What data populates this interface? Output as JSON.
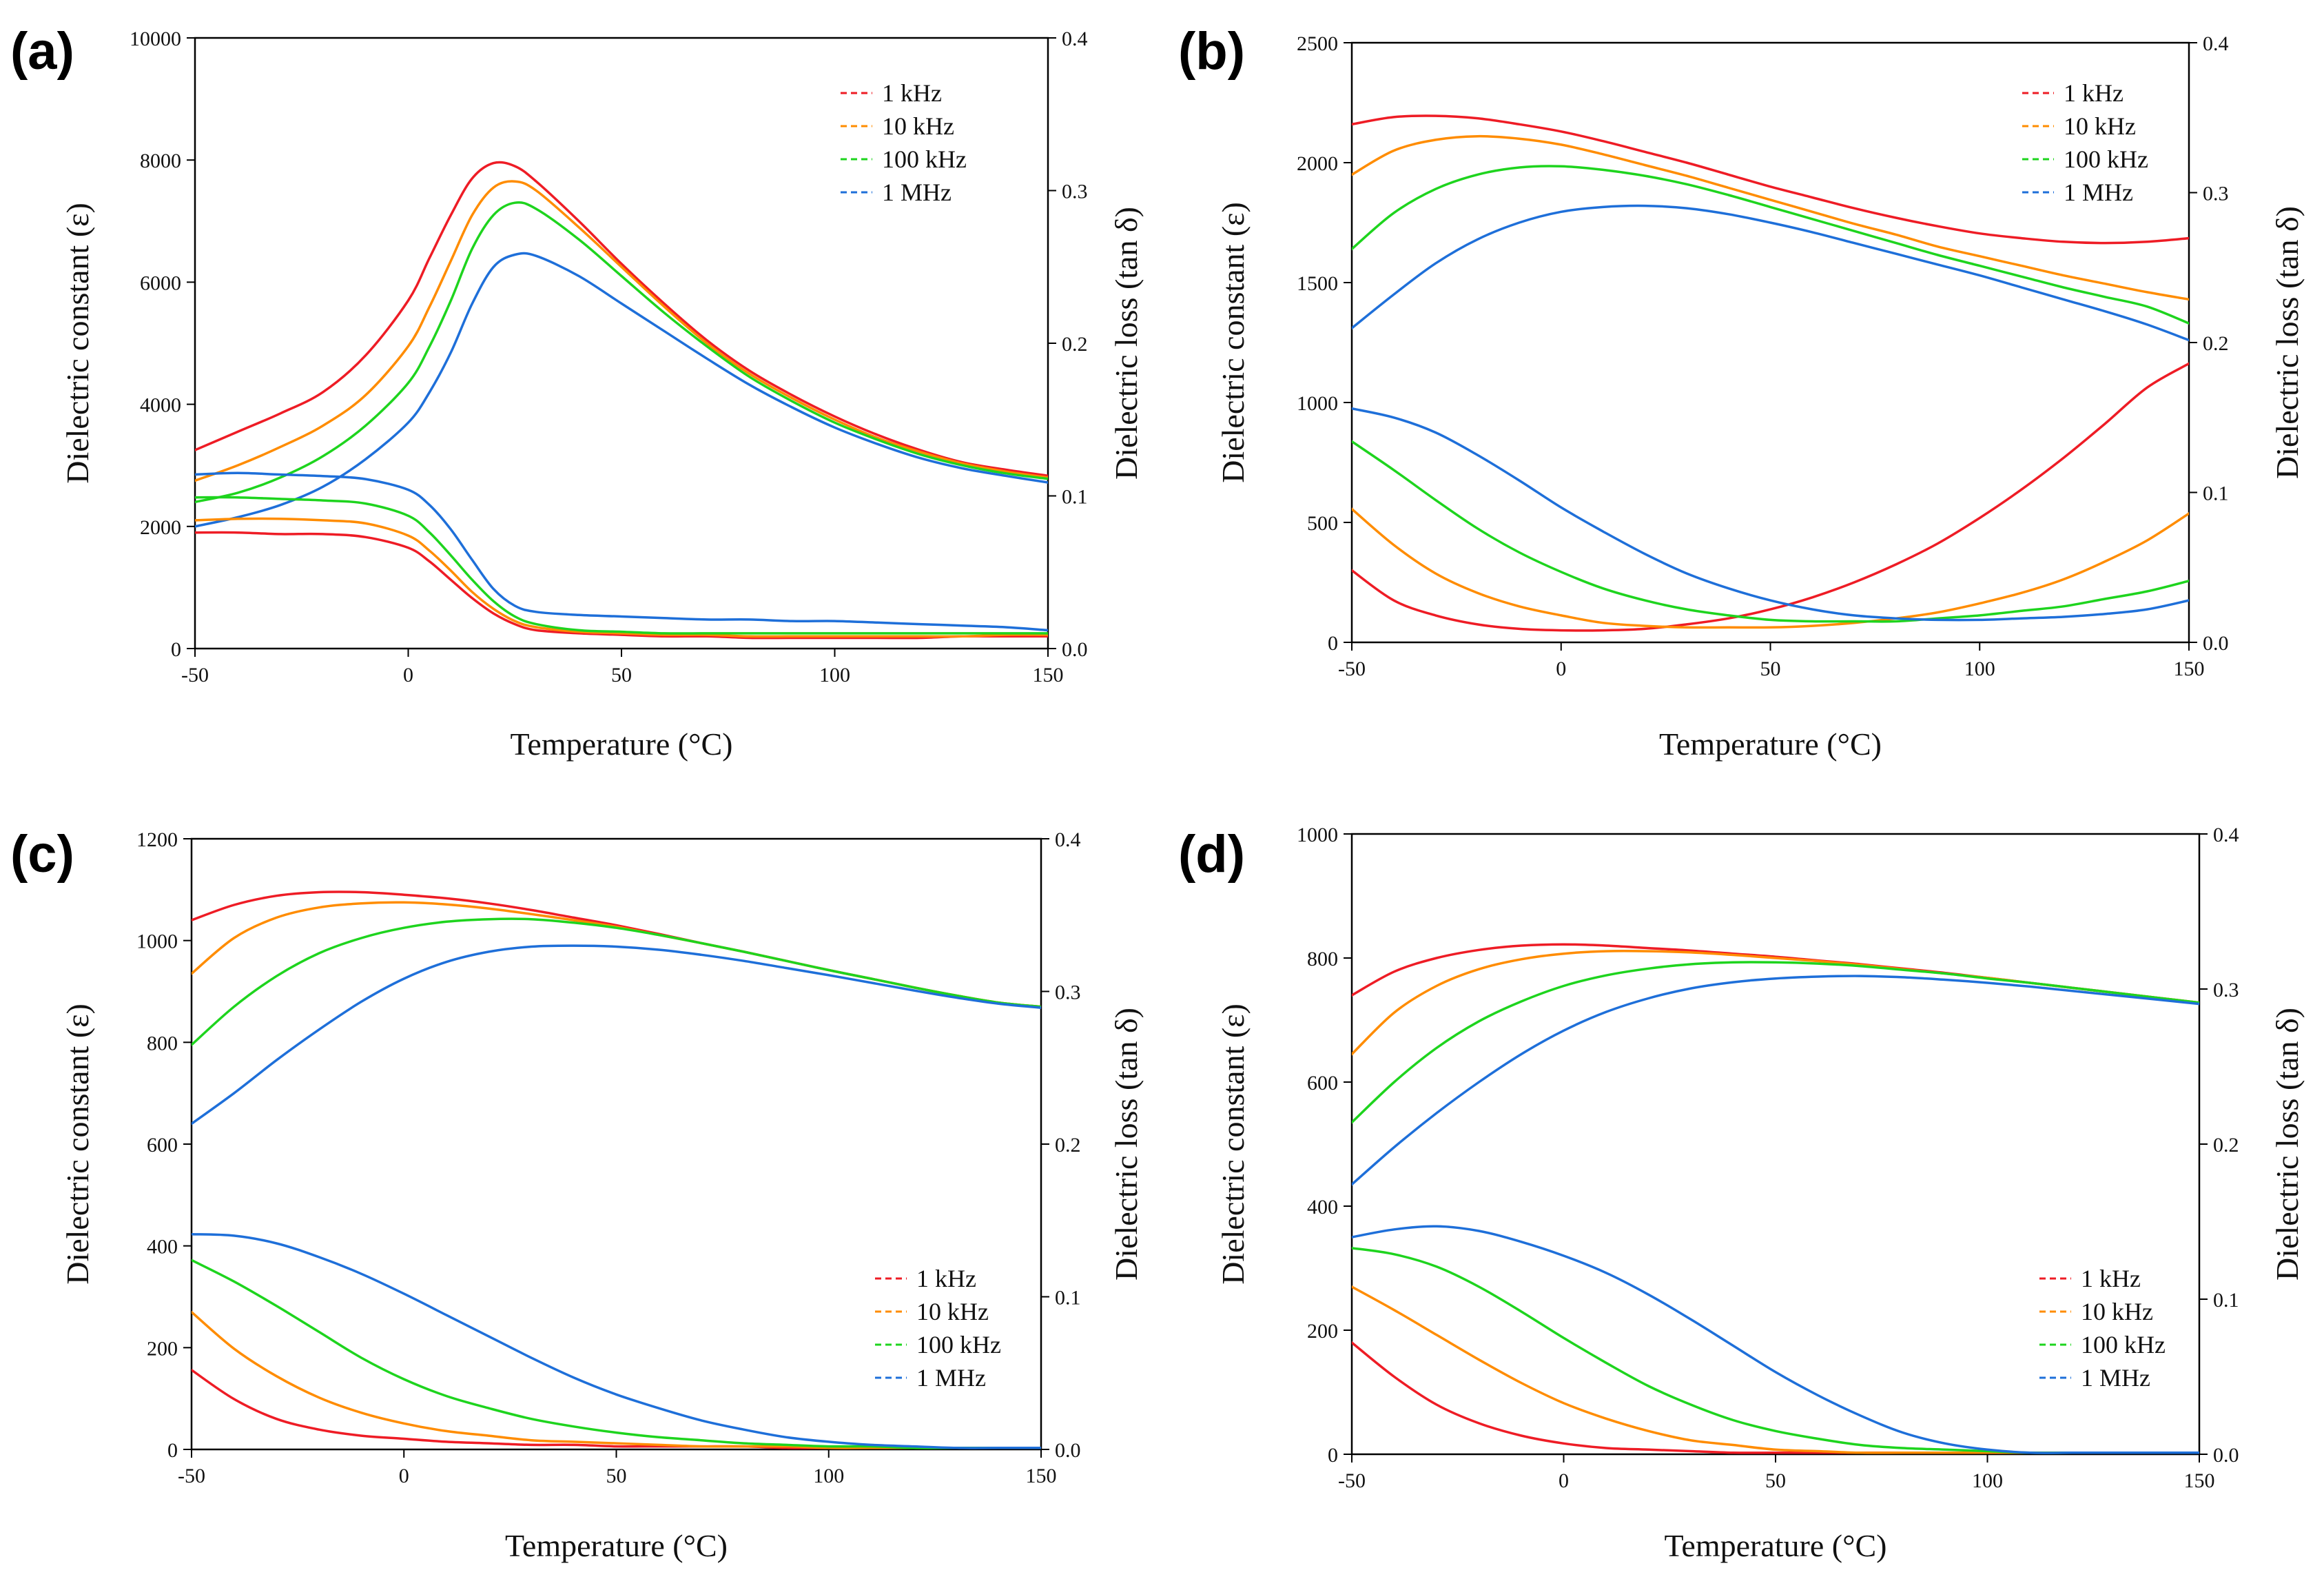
{
  "colors": {
    "1 kHz": "#ee1c25",
    "10 kHz": "#ff8c00",
    "100 kHz": "#1ed41e",
    "1 MHz": "#1e6fd9"
  },
  "chart_data": [
    {
      "panel": "(a)",
      "type": "line",
      "xlabel": "Temperature (°C)",
      "ylabel": "Dielectric constant (ε)",
      "y2label": "Dielectric loss (tan δ)",
      "xlim": [
        -50,
        150
      ],
      "ylim": [
        0,
        10000
      ],
      "y2lim": [
        0,
        0.4
      ],
      "xticks": [
        "-50",
        "0",
        "50",
        "100",
        "150"
      ],
      "yticks": [
        "0",
        "2000",
        "4000",
        "6000",
        "8000",
        "10000"
      ],
      "y2ticks": [
        "0.0",
        "0.1",
        "0.2",
        "0.3",
        "0.4"
      ],
      "legend": [
        "1 kHz",
        "10 kHz",
        "100 kHz",
        "1 MHz"
      ],
      "legend_position": "top-right",
      "x": [
        -50,
        -40,
        -30,
        -20,
        -10,
        0,
        5,
        10,
        15,
        20,
        25,
        30,
        40,
        50,
        60,
        70,
        80,
        90,
        100,
        110,
        120,
        130,
        140,
        150
      ],
      "permittivity": [
        {
          "name": "1 kHz",
          "values": [
            3250,
            3550,
            3850,
            4200,
            4800,
            5700,
            6400,
            7100,
            7700,
            7950,
            7900,
            7650,
            7000,
            6300,
            5650,
            5050,
            4550,
            4150,
            3800,
            3500,
            3250,
            3050,
            2930,
            2830
          ]
        },
        {
          "name": "10 kHz",
          "values": [
            2750,
            3000,
            3300,
            3650,
            4150,
            4950,
            5600,
            6350,
            7100,
            7550,
            7650,
            7500,
            6900,
            6250,
            5600,
            5000,
            4500,
            4100,
            3750,
            3450,
            3220,
            3030,
            2900,
            2800
          ]
        },
        {
          "name": "100 kHz",
          "values": [
            2400,
            2550,
            2800,
            3150,
            3650,
            4350,
            4950,
            5700,
            6550,
            7100,
            7300,
            7200,
            6700,
            6100,
            5500,
            4950,
            4450,
            4050,
            3700,
            3420,
            3180,
            3000,
            2870,
            2780
          ]
        },
        {
          "name": "1 MHz",
          "values": [
            2000,
            2150,
            2350,
            2650,
            3100,
            3700,
            4200,
            4850,
            5650,
            6250,
            6450,
            6430,
            6100,
            5650,
            5200,
            4750,
            4320,
            3950,
            3620,
            3350,
            3120,
            2950,
            2830,
            2720
          ]
        }
      ],
      "loss": [
        {
          "name": "1 kHz",
          "values": [
            0.076,
            0.076,
            0.075,
            0.075,
            0.073,
            0.066,
            0.057,
            0.045,
            0.033,
            0.023,
            0.016,
            0.012,
            0.01,
            0.009,
            0.008,
            0.008,
            0.007,
            0.007,
            0.007,
            0.007,
            0.007,
            0.008,
            0.008,
            0.008
          ]
        },
        {
          "name": "10 kHz",
          "values": [
            0.084,
            0.085,
            0.085,
            0.084,
            0.082,
            0.074,
            0.064,
            0.051,
            0.037,
            0.026,
            0.018,
            0.014,
            0.011,
            0.01,
            0.009,
            0.009,
            0.008,
            0.008,
            0.008,
            0.008,
            0.008,
            0.008,
            0.009,
            0.009
          ]
        },
        {
          "name": "100 kHz",
          "values": [
            0.099,
            0.099,
            0.098,
            0.097,
            0.095,
            0.087,
            0.076,
            0.061,
            0.045,
            0.031,
            0.021,
            0.016,
            0.012,
            0.011,
            0.01,
            0.01,
            0.01,
            0.01,
            0.01,
            0.01,
            0.01,
            0.01,
            0.01,
            0.01
          ]
        },
        {
          "name": "1 MHz",
          "values": [
            0.114,
            0.115,
            0.114,
            0.113,
            0.111,
            0.104,
            0.094,
            0.078,
            0.058,
            0.039,
            0.028,
            0.024,
            0.022,
            0.021,
            0.02,
            0.019,
            0.019,
            0.018,
            0.018,
            0.017,
            0.016,
            0.015,
            0.014,
            0.012
          ]
        }
      ]
    },
    {
      "panel": "(b)",
      "type": "line",
      "xlabel": "Temperature (°C)",
      "ylabel": "Dielectric constant (ε)",
      "y2label": "Dielectric loss (tan δ)",
      "xlim": [
        -50,
        150
      ],
      "ylim": [
        0,
        2500
      ],
      "y2lim": [
        0,
        0.4
      ],
      "xticks": [
        "-50",
        "0",
        "50",
        "100",
        "150"
      ],
      "yticks": [
        "0",
        "500",
        "1000",
        "1500",
        "2000",
        "2500"
      ],
      "y2ticks": [
        "0.0",
        "0.1",
        "0.2",
        "0.3",
        "0.4"
      ],
      "legend": [
        "1 kHz",
        "10 kHz",
        "100 kHz",
        "1 MHz"
      ],
      "legend_position": "top-right",
      "x": [
        -50,
        -40,
        -30,
        -20,
        -10,
        0,
        10,
        20,
        30,
        40,
        50,
        60,
        70,
        80,
        90,
        100,
        110,
        120,
        130,
        140,
        150
      ],
      "permittivity": [
        {
          "name": "1 kHz",
          "values": [
            2160,
            2190,
            2195,
            2185,
            2160,
            2130,
            2090,
            2045,
            2000,
            1950,
            1900,
            1855,
            1810,
            1770,
            1735,
            1705,
            1685,
            1670,
            1665,
            1670,
            1685
          ]
        },
        {
          "name": "10 kHz",
          "values": [
            1950,
            2050,
            2095,
            2110,
            2100,
            2075,
            2035,
            1990,
            1945,
            1895,
            1845,
            1795,
            1745,
            1700,
            1650,
            1610,
            1570,
            1530,
            1495,
            1460,
            1430
          ]
        },
        {
          "name": "100 kHz",
          "values": [
            1640,
            1790,
            1890,
            1950,
            1980,
            1985,
            1970,
            1945,
            1910,
            1865,
            1815,
            1765,
            1715,
            1665,
            1615,
            1570,
            1525,
            1480,
            1440,
            1400,
            1330
          ]
        },
        {
          "name": "1 MHz",
          "values": [
            1310,
            1450,
            1580,
            1680,
            1750,
            1795,
            1815,
            1820,
            1810,
            1785,
            1750,
            1710,
            1665,
            1620,
            1575,
            1530,
            1480,
            1430,
            1380,
            1325,
            1260
          ]
        }
      ],
      "loss": [
        {
          "name": "1 kHz",
          "values": [
            0.048,
            0.028,
            0.018,
            0.012,
            0.009,
            0.008,
            0.008,
            0.009,
            0.012,
            0.016,
            0.022,
            0.03,
            0.04,
            0.052,
            0.066,
            0.083,
            0.102,
            0.123,
            0.146,
            0.17,
            0.186
          ]
        },
        {
          "name": "10 kHz",
          "values": [
            0.089,
            0.065,
            0.046,
            0.033,
            0.024,
            0.018,
            0.013,
            0.011,
            0.01,
            0.01,
            0.01,
            0.011,
            0.013,
            0.016,
            0.02,
            0.026,
            0.033,
            0.042,
            0.054,
            0.068,
            0.086
          ]
        },
        {
          "name": "100 kHz",
          "values": [
            0.134,
            0.115,
            0.095,
            0.076,
            0.06,
            0.047,
            0.036,
            0.028,
            0.022,
            0.018,
            0.015,
            0.014,
            0.014,
            0.014,
            0.016,
            0.018,
            0.021,
            0.024,
            0.029,
            0.034,
            0.041
          ]
        },
        {
          "name": "1 MHz",
          "values": [
            0.156,
            0.15,
            0.14,
            0.125,
            0.108,
            0.09,
            0.074,
            0.059,
            0.046,
            0.036,
            0.028,
            0.022,
            0.018,
            0.016,
            0.015,
            0.015,
            0.016,
            0.017,
            0.019,
            0.022,
            0.028
          ]
        }
      ]
    },
    {
      "panel": "(c)",
      "type": "line",
      "xlabel": "Temperature (°C)",
      "ylabel": "Dielectric constant (ε)",
      "y2label": "Dielectric loss (tan δ)",
      "xlim": [
        -50,
        150
      ],
      "ylim": [
        0,
        1200
      ],
      "y2lim": [
        0,
        0.4
      ],
      "xticks": [
        "-50",
        "0",
        "50",
        "100",
        "150"
      ],
      "yticks": [
        "0",
        "200",
        "400",
        "600",
        "800",
        "1000",
        "1200"
      ],
      "y2ticks": [
        "0.0",
        "0.1",
        "0.2",
        "0.3",
        "0.4"
      ],
      "legend": [
        "1 kHz",
        "10 kHz",
        "100 kHz",
        "1 MHz"
      ],
      "legend_position": "bottom-right",
      "x": [
        -50,
        -40,
        -30,
        -20,
        -10,
        0,
        10,
        20,
        30,
        40,
        50,
        60,
        70,
        80,
        90,
        100,
        110,
        120,
        130,
        140,
        150
      ],
      "permittivity": [
        {
          "name": "1 kHz",
          "values": [
            1040,
            1070,
            1088,
            1095,
            1095,
            1090,
            1083,
            1073,
            1060,
            1045,
            1030,
            1013,
            995,
            978,
            960,
            942,
            925,
            908,
            892,
            878,
            870
          ]
        },
        {
          "name": "10 kHz",
          "values": [
            935,
            1005,
            1045,
            1065,
            1073,
            1075,
            1071,
            1063,
            1052,
            1040,
            1027,
            1011,
            995,
            978,
            960,
            942,
            925,
            908,
            892,
            878,
            870
          ]
        },
        {
          "name": "100 kHz",
          "values": [
            795,
            870,
            930,
            975,
            1005,
            1025,
            1037,
            1042,
            1042,
            1035,
            1025,
            1011,
            995,
            978,
            960,
            942,
            925,
            908,
            892,
            878,
            870
          ]
        },
        {
          "name": "1 MHz",
          "values": [
            640,
            700,
            765,
            825,
            880,
            925,
            958,
            978,
            988,
            990,
            988,
            982,
            972,
            960,
            946,
            932,
            917,
            902,
            888,
            876,
            868
          ]
        }
      ],
      "loss": [
        {
          "name": "1 kHz",
          "values": [
            0.052,
            0.033,
            0.02,
            0.013,
            0.009,
            0.007,
            0.005,
            0.004,
            0.003,
            0.003,
            0.002,
            0.002,
            0.002,
            0.002,
            0.001,
            0.001,
            0.001,
            0.001,
            0.001,
            0.001,
            0.001
          ]
        },
        {
          "name": "10 kHz",
          "values": [
            0.09,
            0.066,
            0.048,
            0.034,
            0.024,
            0.017,
            0.012,
            0.009,
            0.006,
            0.005,
            0.004,
            0.003,
            0.002,
            0.002,
            0.002,
            0.001,
            0.001,
            0.001,
            0.001,
            0.001,
            0.001
          ]
        },
        {
          "name": "100 kHz",
          "values": [
            0.124,
            0.11,
            0.094,
            0.077,
            0.06,
            0.046,
            0.035,
            0.027,
            0.02,
            0.015,
            0.011,
            0.008,
            0.006,
            0.004,
            0.003,
            0.002,
            0.002,
            0.001,
            0.001,
            0.001,
            0.001
          ]
        },
        {
          "name": "1 MHz",
          "values": [
            0.141,
            0.14,
            0.135,
            0.126,
            0.115,
            0.102,
            0.088,
            0.074,
            0.06,
            0.047,
            0.036,
            0.027,
            0.019,
            0.013,
            0.008,
            0.005,
            0.003,
            0.002,
            0.001,
            0.001,
            0.001
          ]
        }
      ]
    },
    {
      "panel": "(d)",
      "type": "line",
      "xlabel": "Temperature (°C)",
      "ylabel": "Dielectric constant (ε)",
      "y2label": "Dielectric loss (tan δ)",
      "xlim": [
        -50,
        150
      ],
      "ylim": [
        0,
        1000
      ],
      "y2lim": [
        0,
        0.4
      ],
      "xticks": [
        "-50",
        "0",
        "50",
        "100",
        "150"
      ],
      "yticks": [
        "0",
        "200",
        "400",
        "600",
        "800",
        "1000"
      ],
      "y2ticks": [
        "0.0",
        "0.1",
        "0.2",
        "0.3",
        "0.4"
      ],
      "legend": [
        "1 kHz",
        "10 kHz",
        "100 kHz",
        "1 MHz"
      ],
      "legend_position": "bottom-right",
      "x": [
        -50,
        -40,
        -30,
        -20,
        -10,
        0,
        10,
        20,
        30,
        40,
        50,
        60,
        70,
        80,
        90,
        100,
        110,
        120,
        130,
        140,
        150
      ],
      "permittivity": [
        {
          "name": "1 kHz",
          "values": [
            740,
            778,
            800,
            813,
            820,
            822,
            820,
            816,
            812,
            807,
            802,
            796,
            790,
            783,
            776,
            768,
            760,
            752,
            744,
            736,
            728
          ]
        },
        {
          "name": "10 kHz",
          "values": [
            645,
            712,
            755,
            782,
            798,
            807,
            811,
            811,
            809,
            805,
            800,
            795,
            789,
            782,
            775,
            768,
            760,
            752,
            744,
            736,
            728
          ]
        },
        {
          "name": "100 kHz",
          "values": [
            535,
            600,
            655,
            698,
            730,
            755,
            772,
            783,
            790,
            793,
            793,
            791,
            787,
            781,
            775,
            767,
            760,
            752,
            744,
            736,
            728
          ]
        },
        {
          "name": "1 MHz",
          "values": [
            435,
            495,
            550,
            600,
            645,
            683,
            713,
            735,
            751,
            761,
            767,
            770,
            771,
            769,
            765,
            760,
            754,
            747,
            740,
            733,
            726
          ]
        }
      ],
      "loss": [
        {
          "name": "1 kHz",
          "values": [
            0.072,
            0.05,
            0.032,
            0.02,
            0.012,
            0.007,
            0.004,
            0.003,
            0.002,
            0.001,
            0.001,
            0.001,
            0.001,
            0.001,
            0.001,
            0.001,
            0.001,
            0.001,
            0.001,
            0.001,
            0.001
          ]
        },
        {
          "name": "10 kHz",
          "values": [
            0.108,
            0.093,
            0.077,
            0.061,
            0.046,
            0.033,
            0.023,
            0.015,
            0.009,
            0.006,
            0.003,
            0.002,
            0.001,
            0.001,
            0.001,
            0.001,
            0.001,
            0.001,
            0.001,
            0.001,
            0.001
          ]
        },
        {
          "name": "100 kHz",
          "values": [
            0.133,
            0.129,
            0.121,
            0.108,
            0.092,
            0.075,
            0.059,
            0.044,
            0.032,
            0.022,
            0.015,
            0.01,
            0.006,
            0.004,
            0.003,
            0.002,
            0.001,
            0.001,
            0.001,
            0.001,
            0.001
          ]
        },
        {
          "name": "1 MHz",
          "values": [
            0.14,
            0.145,
            0.147,
            0.144,
            0.137,
            0.128,
            0.117,
            0.103,
            0.087,
            0.07,
            0.053,
            0.038,
            0.025,
            0.014,
            0.007,
            0.003,
            0.001,
            0.001,
            0.001,
            0.001,
            0.001
          ]
        }
      ]
    }
  ]
}
